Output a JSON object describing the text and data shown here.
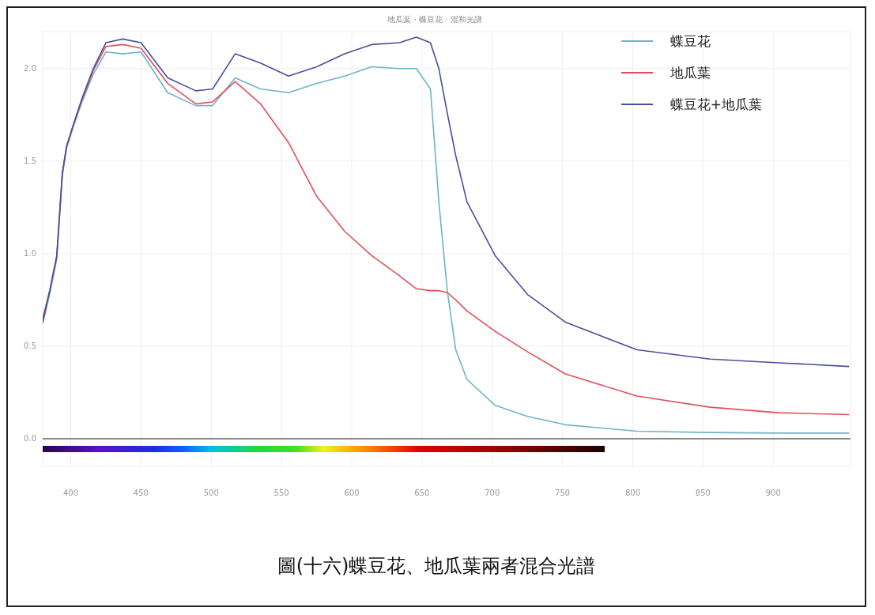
{
  "chart_data": {
    "type": "line",
    "title": "地瓜葉 · 蝶豆花 · 混和光譜",
    "x": [
      380,
      385,
      390,
      394,
      397,
      402,
      408,
      416,
      425,
      437,
      450,
      469,
      489,
      501,
      517,
      535,
      555,
      575,
      595,
      614,
      634,
      646,
      656,
      662,
      668,
      674,
      682,
      702,
      725,
      752,
      803,
      855,
      904,
      954
    ],
    "series": [
      {
        "name": "蝶豆花",
        "color": "#6fb3c8",
        "values": [
          0.62,
          0.78,
          0.97,
          1.42,
          1.57,
          1.69,
          1.82,
          1.97,
          2.09,
          2.08,
          2.09,
          1.87,
          1.8,
          1.8,
          1.95,
          1.89,
          1.87,
          1.92,
          1.96,
          2.01,
          2.0,
          2.0,
          1.89,
          1.28,
          0.8,
          0.48,
          0.32,
          0.18,
          0.12,
          0.075,
          0.04,
          0.033,
          0.03,
          0.03
        ]
      },
      {
        "name": "地瓜葉",
        "color": "#e0505a",
        "values": [
          0.65,
          0.8,
          0.98,
          1.43,
          1.58,
          1.7,
          1.83,
          1.99,
          2.12,
          2.13,
          2.11,
          1.92,
          1.81,
          1.82,
          1.93,
          1.81,
          1.6,
          1.31,
          1.12,
          0.99,
          0.88,
          0.81,
          0.8,
          0.8,
          0.79,
          0.75,
          0.69,
          0.58,
          0.47,
          0.35,
          0.23,
          0.17,
          0.14,
          0.13
        ]
      },
      {
        "name": "蝶豆花+地瓜葉",
        "color": "#4a4f9a",
        "values": [
          0.63,
          0.8,
          0.99,
          1.44,
          1.58,
          1.7,
          1.84,
          2.0,
          2.14,
          2.16,
          2.14,
          1.95,
          1.88,
          1.89,
          2.08,
          2.03,
          1.96,
          2.01,
          2.08,
          2.13,
          2.14,
          2.17,
          2.14,
          2.0,
          1.76,
          1.53,
          1.28,
          0.99,
          0.78,
          0.63,
          0.48,
          0.43,
          0.41,
          0.39
        ]
      }
    ],
    "xlim": [
      380,
      955
    ],
    "xticks": [
      400,
      450,
      500,
      550,
      600,
      650,
      700,
      750,
      800,
      850,
      900
    ],
    "ylim": [
      -0.15,
      2.2
    ],
    "yticks": [
      {
        "value": 0,
        "label": "0.0"
      },
      {
        "value": 0.5,
        "label": "0.5"
      },
      {
        "value": 1,
        "label": "1.0"
      },
      {
        "value": 1.5,
        "label": "1.5"
      },
      {
        "value": 2,
        "label": "2.0"
      }
    ],
    "ref_lines": [
      {
        "axis": "y",
        "value": 0,
        "color": "#888888"
      }
    ],
    "grid": true,
    "legend": "top right",
    "marker": "none",
    "line_style": "solid",
    "annotations": [
      "圖(十六)蝶豆花、地瓜葉兩者混合光譜"
    ]
  }
}
